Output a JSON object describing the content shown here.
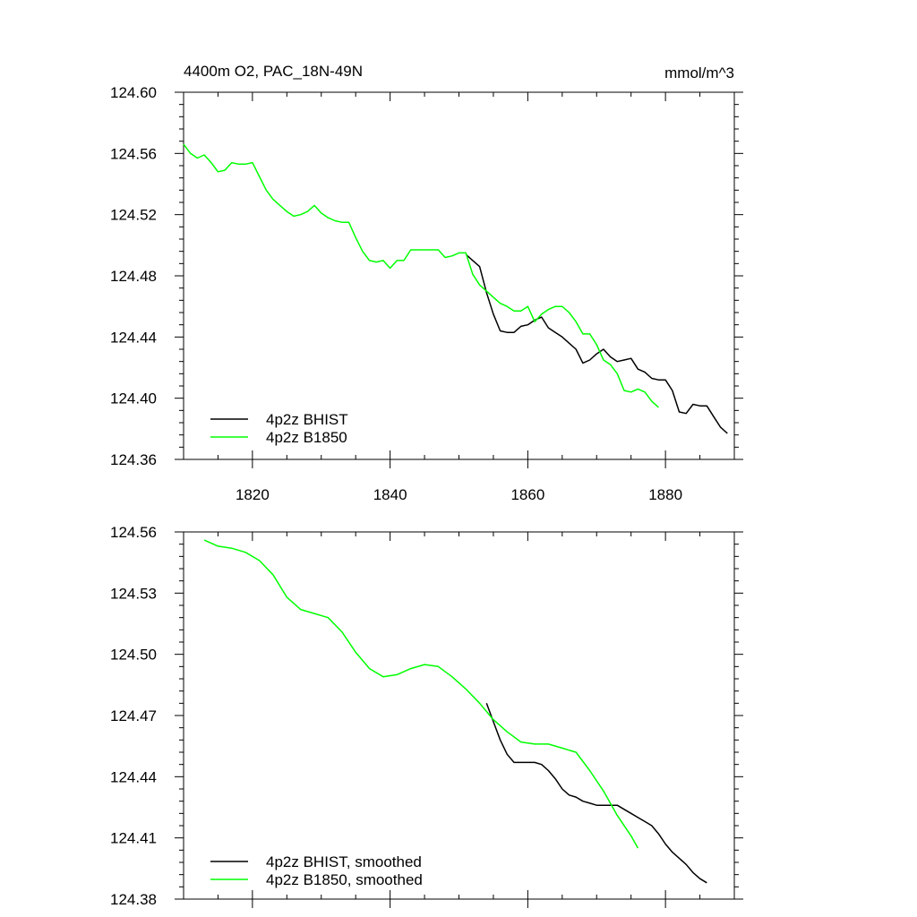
{
  "chart_data": [
    {
      "type": "line",
      "title": "4400m O2, PAC_18N-49N",
      "units": "mmol/m^3",
      "xlim": [
        1810,
        1890
      ],
      "ylim": [
        124.36,
        124.6
      ],
      "x_ticks": [
        1820,
        1840,
        1860,
        1880
      ],
      "x_tick_labels": [
        "1820",
        "1840",
        "1860",
        "1880"
      ],
      "y_ticks": [
        124.36,
        124.4,
        124.44,
        124.48,
        124.52,
        124.56,
        124.6
      ],
      "y_tick_labels": [
        "124.36",
        "124.40",
        "124.44",
        "124.48",
        "124.52",
        "124.56",
        "124.60"
      ],
      "legend_position": "bottom-left",
      "series": [
        {
          "name": "4p2z BHIST",
          "color": "#000000",
          "x": [
            1851,
            1852,
            1853,
            1854,
            1855,
            1856,
            1857,
            1858,
            1859,
            1860,
            1861,
            1862,
            1863,
            1864,
            1865,
            1866,
            1867,
            1868,
            1869,
            1870,
            1871,
            1872,
            1873,
            1874,
            1875,
            1876,
            1877,
            1878,
            1879,
            1880,
            1881,
            1882,
            1883,
            1884,
            1885,
            1886,
            1887,
            1888,
            1889
          ],
          "y": [
            124.494,
            124.49,
            124.486,
            124.469,
            124.455,
            124.444,
            124.443,
            124.443,
            124.447,
            124.448,
            124.451,
            124.453,
            124.446,
            124.443,
            124.44,
            124.436,
            124.432,
            124.423,
            124.425,
            124.429,
            124.432,
            124.427,
            124.424,
            124.425,
            124.426,
            124.419,
            124.417,
            124.413,
            124.412,
            124.412,
            124.405,
            124.391,
            124.39,
            124.396,
            124.395,
            124.395,
            124.388,
            124.381,
            124.377
          ]
        },
        {
          "name": "4p2z B1850",
          "color": "#00ff00",
          "x": [
            1810,
            1811,
            1812,
            1813,
            1814,
            1815,
            1816,
            1817,
            1818,
            1819,
            1820,
            1821,
            1822,
            1823,
            1824,
            1825,
            1826,
            1827,
            1828,
            1829,
            1830,
            1831,
            1832,
            1833,
            1834,
            1835,
            1836,
            1837,
            1838,
            1839,
            1840,
            1841,
            1842,
            1843,
            1844,
            1845,
            1846,
            1847,
            1848,
            1849,
            1850,
            1851,
            1852,
            1853,
            1854,
            1855,
            1856,
            1857,
            1858,
            1859,
            1860,
            1861,
            1862,
            1863,
            1864,
            1865,
            1866,
            1867,
            1868,
            1869,
            1870,
            1871,
            1872,
            1873,
            1874,
            1875,
            1876,
            1877,
            1878,
            1879
          ],
          "y": [
            124.566,
            124.56,
            124.557,
            124.559,
            124.554,
            124.548,
            124.549,
            124.554,
            124.553,
            124.553,
            124.554,
            124.545,
            124.536,
            124.53,
            124.526,
            124.522,
            124.519,
            124.52,
            124.522,
            124.526,
            124.521,
            124.518,
            124.516,
            124.515,
            124.515,
            124.505,
            124.496,
            124.49,
            124.489,
            124.49,
            124.485,
            124.49,
            124.49,
            124.497,
            124.497,
            124.497,
            124.497,
            124.497,
            124.492,
            124.493,
            124.495,
            124.495,
            124.481,
            124.474,
            124.47,
            124.466,
            124.462,
            124.46,
            124.457,
            124.457,
            124.46,
            124.45,
            124.455,
            124.458,
            124.46,
            124.46,
            124.456,
            124.45,
            124.442,
            124.442,
            124.435,
            124.425,
            124.422,
            124.416,
            124.405,
            124.404,
            124.406,
            124.404,
            124.398,
            124.394
          ]
        }
      ]
    },
    {
      "type": "line",
      "xlim": [
        1810,
        1890
      ],
      "ylim": [
        124.38,
        124.56
      ],
      "x_ticks": [
        1820,
        1840,
        1860,
        1880
      ],
      "y_ticks": [
        124.38,
        124.41,
        124.44,
        124.47,
        124.5,
        124.53,
        124.56
      ],
      "y_tick_labels": [
        "124.38",
        "124.41",
        "124.44",
        "124.47",
        "124.50",
        "124.53",
        "124.56"
      ],
      "legend_position": "bottom-left",
      "series": [
        {
          "name": "4p2z BHIST, smoothed",
          "color": "#000000",
          "x": [
            1854,
            1855,
            1856,
            1857,
            1858,
            1859,
            1860,
            1861,
            1862,
            1863,
            1864,
            1865,
            1866,
            1867,
            1868,
            1869,
            1870,
            1871,
            1872,
            1873,
            1874,
            1875,
            1876,
            1877,
            1878,
            1879,
            1880,
            1881,
            1882,
            1883,
            1884,
            1885,
            1886
          ],
          "y": [
            124.476,
            124.467,
            124.458,
            124.451,
            124.447,
            124.447,
            124.447,
            124.447,
            124.446,
            124.443,
            124.439,
            124.434,
            124.431,
            124.43,
            124.428,
            124.427,
            124.426,
            124.426,
            124.426,
            124.426,
            124.424,
            124.422,
            124.42,
            124.418,
            124.416,
            124.412,
            124.407,
            124.403,
            124.4,
            124.397,
            124.393,
            124.39,
            124.388
          ]
        },
        {
          "name": "4p2z B1850, smoothed",
          "color": "#00ff00",
          "x": [
            1813,
            1815,
            1817,
            1819,
            1821,
            1823,
            1825,
            1827,
            1829,
            1831,
            1833,
            1835,
            1837,
            1839,
            1841,
            1843,
            1845,
            1847,
            1849,
            1851,
            1853,
            1855,
            1857,
            1859,
            1861,
            1863,
            1865,
            1867,
            1869,
            1871,
            1873,
            1875,
            1876
          ],
          "y": [
            124.556,
            124.553,
            124.552,
            124.55,
            124.546,
            124.539,
            124.528,
            124.522,
            124.52,
            124.518,
            124.511,
            124.501,
            124.493,
            124.489,
            124.49,
            124.493,
            124.495,
            124.494,
            124.489,
            124.483,
            124.476,
            124.468,
            124.462,
            124.457,
            124.456,
            124.456,
            124.454,
            124.452,
            124.443,
            124.433,
            124.421,
            124.411,
            124.405
          ]
        }
      ]
    }
  ]
}
